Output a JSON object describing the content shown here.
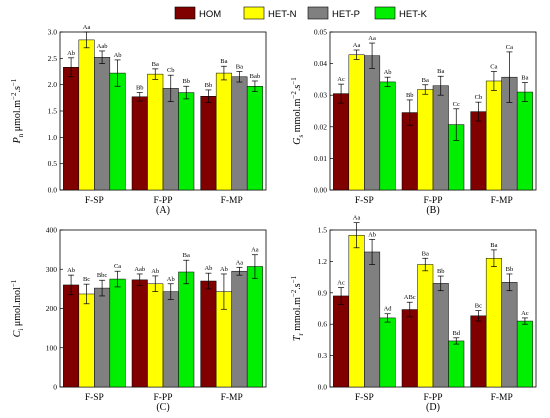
{
  "legend": {
    "items": [
      {
        "name": "HOM",
        "color": "#800000"
      },
      {
        "name": "HET-N",
        "color": "#ffff00"
      },
      {
        "name": "HET-P",
        "color": "#808080"
      },
      {
        "name": "HET-K",
        "color": "#00ee00"
      }
    ]
  },
  "chart_data": [
    {
      "type": "bar",
      "panel_label": "(A)",
      "ylabel_sym": "P",
      "ylabel_sub": "n",
      "ylabel_unit_pre": "μmol.m",
      "ylabel_unit_sup1": "−2",
      "ylabel_unit_mid": ".s",
      "ylabel_unit_sup2": "−1",
      "ylim": [
        0,
        3.0
      ],
      "yticks": [
        "0.0",
        "0.5",
        "1.0",
        "1.5",
        "2.0",
        "2.5",
        "3.0"
      ],
      "ytick_values": [
        0,
        0.5,
        1.0,
        1.5,
        2.0,
        2.5,
        3.0
      ],
      "categories": [
        "F-SP",
        "F-PP",
        "F-MP"
      ],
      "series": [
        {
          "name": "HOM",
          "values": [
            2.33,
            1.77,
            1.78
          ],
          "errors": [
            0.18,
            0.08,
            0.12
          ],
          "labels": [
            "Ab",
            "Bb",
            "Bb"
          ]
        },
        {
          "name": "HET-N",
          "values": [
            2.85,
            2.2,
            2.22
          ],
          "errors": [
            0.15,
            0.1,
            0.13
          ],
          "labels": [
            "Aa",
            "Ba",
            "Ba"
          ]
        },
        {
          "name": "HET-P",
          "values": [
            2.52,
            1.93,
            2.15
          ],
          "errors": [
            0.12,
            0.25,
            0.1
          ],
          "labels": [
            "Aab",
            "Cb",
            "Ba"
          ]
        },
        {
          "name": "HET-K",
          "values": [
            2.22,
            1.85,
            1.97
          ],
          "errors": [
            0.25,
            0.12,
            0.1
          ],
          "labels": [
            "Ab",
            "Bb",
            "Bab"
          ]
        }
      ]
    },
    {
      "type": "bar",
      "panel_label": "(B)",
      "ylabel_sym": "G",
      "ylabel_sub": "s",
      "ylabel_unit_pre": "mmol.m",
      "ylabel_unit_sup1": "−2",
      "ylabel_unit_mid": ".s",
      "ylabel_unit_sup2": "−1",
      "ylim": [
        0,
        0.05
      ],
      "yticks": [
        "0.00",
        "0.01",
        "0.02",
        "0.03",
        "0.04",
        "0.05"
      ],
      "ytick_values": [
        0,
        0.01,
        0.02,
        0.03,
        0.04,
        0.05
      ],
      "categories": [
        "F-SP",
        "F-PP",
        "F-MP"
      ],
      "series": [
        {
          "name": "HOM",
          "values": [
            0.0305,
            0.0245,
            0.0248
          ],
          "errors": [
            0.003,
            0.004,
            0.003
          ],
          "labels": [
            "Ac",
            "Bb",
            "Cb"
          ]
        },
        {
          "name": "HET-N",
          "values": [
            0.0428,
            0.0318,
            0.0345
          ],
          "errors": [
            0.0015,
            0.0015,
            0.003
          ],
          "labels": [
            "Aa",
            "Ba",
            "Ca"
          ]
        },
        {
          "name": "HET-P",
          "values": [
            0.0425,
            0.033,
            0.0357
          ],
          "errors": [
            0.004,
            0.003,
            0.008
          ],
          "labels": [
            "Aa",
            "Ba",
            "Ca"
          ]
        },
        {
          "name": "HET-K",
          "values": [
            0.0342,
            0.0207,
            0.031
          ],
          "errors": [
            0.0015,
            0.005,
            0.003
          ],
          "labels": [
            "Ab",
            "Cc",
            "Ba"
          ]
        }
      ]
    },
    {
      "type": "bar",
      "panel_label": "(C)",
      "ylabel_sym": "C",
      "ylabel_sub": "i",
      "ylabel_unit_pre": "μmol.mol",
      "ylabel_unit_sup1": "−1",
      "ylabel_unit_mid": "",
      "ylabel_unit_sup2": "",
      "ylim": [
        0,
        400
      ],
      "yticks": [
        "0",
        "100",
        "200",
        "300",
        "400"
      ],
      "ytick_values": [
        0,
        100,
        200,
        300,
        400
      ],
      "categories": [
        "F-SP",
        "F-PP",
        "F-MP"
      ],
      "series": [
        {
          "name": "HOM",
          "values": [
            260,
            273,
            270
          ],
          "errors": [
            25,
            15,
            20
          ],
          "labels": [
            "Ab",
            "Aab",
            "Ab"
          ]
        },
        {
          "name": "HET-N",
          "values": [
            237,
            263,
            243
          ],
          "errors": [
            25,
            20,
            45
          ],
          "labels": [
            "Bc",
            "Ab",
            "Ab"
          ]
        },
        {
          "name": "HET-P",
          "values": [
            252,
            243,
            295
          ],
          "errors": [
            20,
            20,
            10
          ],
          "labels": [
            "Bbc",
            "Ab",
            "Aa"
          ]
        },
        {
          "name": "HET-K",
          "values": [
            275,
            293,
            307
          ],
          "errors": [
            20,
            30,
            30
          ],
          "labels": [
            "Ca",
            "Ba",
            "Aa"
          ]
        }
      ]
    },
    {
      "type": "bar",
      "panel_label": "(D)",
      "ylabel_sym": "T",
      "ylabel_sub": "r",
      "ylabel_unit_pre": "mmol.m",
      "ylabel_unit_sup1": "−2",
      "ylabel_unit_mid": ".s",
      "ylabel_unit_sup2": "−1",
      "ylim": [
        0,
        1.5
      ],
      "yticks": [
        "0.0",
        "0.3",
        "0.6",
        "0.9",
        "1.2",
        "1.5"
      ],
      "ytick_values": [
        0,
        0.3,
        0.6,
        0.9,
        1.2,
        1.5
      ],
      "categories": [
        "F-SP",
        "F-PP",
        "F-MP"
      ],
      "series": [
        {
          "name": "HOM",
          "values": [
            0.87,
            0.74,
            0.68
          ],
          "errors": [
            0.08,
            0.07,
            0.05
          ],
          "labels": [
            "Ac",
            "ABc",
            "Bc"
          ]
        },
        {
          "name": "HET-N",
          "values": [
            1.45,
            1.17,
            1.23
          ],
          "errors": [
            0.12,
            0.06,
            0.08
          ],
          "labels": [
            "Aa",
            "Ba",
            "Ba"
          ]
        },
        {
          "name": "HET-P",
          "values": [
            1.29,
            0.99,
            1.0
          ],
          "errors": [
            0.12,
            0.07,
            0.08
          ],
          "labels": [
            "Ab",
            "Bb",
            "Bb"
          ]
        },
        {
          "name": "HET-K",
          "values": [
            0.66,
            0.44,
            0.63
          ],
          "errors": [
            0.04,
            0.03,
            0.03
          ],
          "labels": [
            "Ad",
            "Bd",
            "Ac"
          ]
        }
      ]
    }
  ]
}
